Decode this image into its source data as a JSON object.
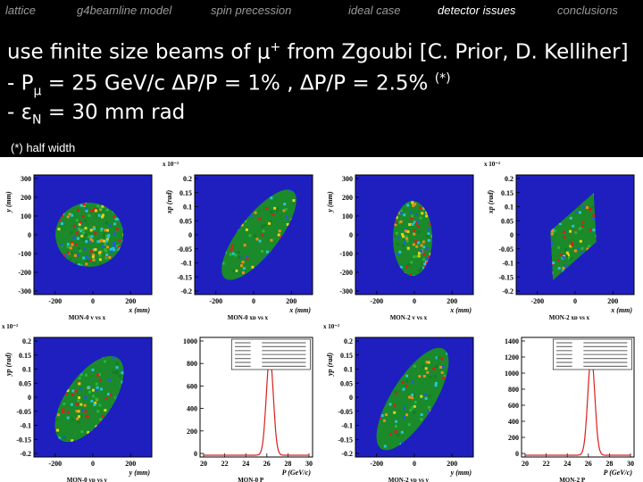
{
  "nav": {
    "items": [
      {
        "label": "lattice",
        "active": false
      },
      {
        "label": "g4beamline model",
        "active": false
      },
      {
        "label": "spin precession",
        "active": false
      },
      {
        "label": "ideal case",
        "active": false
      },
      {
        "label": "detector issues",
        "active": true
      },
      {
        "label": "conclusions",
        "active": false
      }
    ]
  },
  "headline": {
    "line1_text": "use finite size beams of μ",
    "line1_sup": "+",
    "line1_rest": " from Zgoubi [C. Prior, D. Kelliher]",
    "line2_a": "- P",
    "line2_sub": "μ",
    "line2_b": " = 25 GeV/c  ΔP/P = 1% , ΔP/P = 2.5% ",
    "line2_sup": "(*)",
    "line3_a": "- ε",
    "line3_sub": "N",
    "line3_b": " = 30 mm rad"
  },
  "footnote": "(*) half width",
  "colors": {
    "background": "#000000",
    "nav_inactive": "#9a9a9a",
    "nav_active": "#ffffff",
    "plot_bg": "#ffffff",
    "pad_blue": "#1f1fbf"
  },
  "plots": [
    {
      "title": "MON-0 y vs x",
      "xlabel": "x (mm)",
      "ylabel": "y (mm)",
      "exponent": "",
      "shape": "circle",
      "xticks": [
        "-200",
        "0",
        "200"
      ],
      "yticks": [
        "300",
        "200",
        "100",
        "0",
        "-100",
        "-200",
        "-300"
      ]
    },
    {
      "title": "MON-0 xp vs x",
      "xlabel": "x (mm)",
      "ylabel": "xp (rad)",
      "exponent": "x 10⁻²",
      "shape": "ellipse-steep",
      "xticks": [
        "-200",
        "0",
        "200"
      ],
      "yticks": [
        "0.2",
        "0.15",
        "0.1",
        "0.05",
        "0",
        "-0.05",
        "-0.1",
        "-0.15",
        "-0.2"
      ]
    },
    {
      "title": "MON-2 y vs x",
      "xlabel": "x (mm)",
      "ylabel": "y (mm)",
      "exponent": "",
      "shape": "ellipse-tall",
      "xticks": [
        "-200",
        "0",
        "200"
      ],
      "yticks": [
        "300",
        "200",
        "100",
        "0",
        "-100",
        "-200",
        "-300"
      ]
    },
    {
      "title": "MON-2 xp vs x",
      "xlabel": "x (mm)",
      "ylabel": "xp (rad)",
      "exponent": "x 10⁻²",
      "shape": "diamond",
      "xticks": [
        "-200",
        "0",
        "200"
      ],
      "yticks": [
        "0.2",
        "0.15",
        "0.1",
        "0.05",
        "0",
        "-0.05",
        "-0.1",
        "-0.15",
        "-0.2"
      ]
    },
    {
      "title": "MON-0 yp vs y",
      "xlabel": "y (mm)",
      "ylabel": "yp (rad)",
      "exponent": "x 10⁻²",
      "shape": "ellipse-wide",
      "xticks": [
        "-200",
        "0",
        "200"
      ],
      "yticks": [
        "0.2",
        "0.15",
        "0.1",
        "0.05",
        "0",
        "-0.05",
        "-0.1",
        "-0.15",
        "-0.2"
      ]
    },
    {
      "title": "MON-0 P",
      "xlabel": "P (GeV/c)",
      "ylabel": "",
      "exponent": "",
      "shape": "hist",
      "xticks": [
        "20",
        "22",
        "24",
        "26",
        "28",
        "30"
      ],
      "yticks": [
        "1000",
        "800",
        "600",
        "400",
        "200",
        "0"
      ]
    },
    {
      "title": "MON-2 yp vs y",
      "xlabel": "y (mm)",
      "ylabel": "yp (rad)",
      "exponent": "x 10⁻²",
      "shape": "ellipse-long",
      "xticks": [
        "-200",
        "0",
        "200"
      ],
      "yticks": [
        "0.2",
        "0.15",
        "0.1",
        "0.05",
        "0",
        "-0.05",
        "-0.1",
        "-0.15",
        "-0.2"
      ]
    },
    {
      "title": "MON-2 P",
      "xlabel": "P (GeV/c)",
      "ylabel": "",
      "exponent": "",
      "shape": "hist",
      "xticks": [
        "20",
        "22",
        "24",
        "26",
        "28",
        "30"
      ],
      "yticks": [
        "1400",
        "1200",
        "1000",
        "800",
        "600",
        "400",
        "200",
        "0"
      ]
    }
  ]
}
